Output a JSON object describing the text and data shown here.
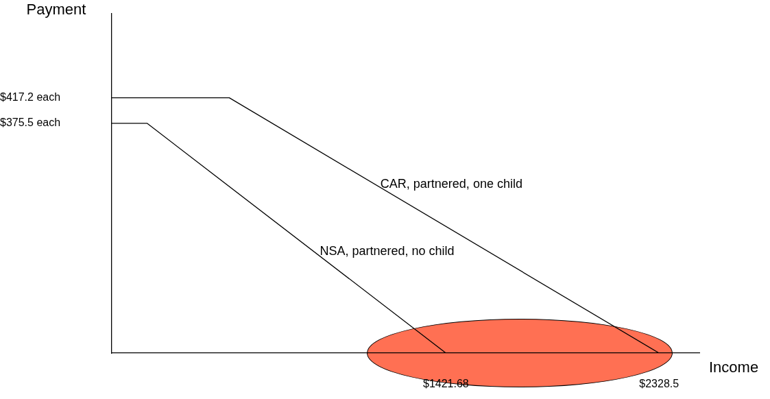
{
  "chart_data": {
    "type": "line",
    "xlabel": "Income",
    "ylabel": "Payment",
    "xlim": [
      0,
      2500
    ],
    "ylim": [
      0,
      555
    ],
    "xticks": [
      {
        "value": 1421.68,
        "label": "$1421.68"
      },
      {
        "value": 2328.5,
        "label": "$2328.5"
      }
    ],
    "yticks": [
      {
        "value": 375.5,
        "label": "$375.5 each"
      },
      {
        "value": 417.2,
        "label": "$417.2 each"
      }
    ],
    "grid": false,
    "legend": false,
    "marker": "none",
    "line_style": "solid",
    "series": [
      {
        "name": "CAR, partnered, one child",
        "color": "#000000",
        "x": [
          0,
          500,
          2328.5
        ],
        "values": [
          417.2,
          417.2,
          0
        ]
      },
      {
        "name": "NSA, partnered, no child",
        "color": "#000000",
        "x": [
          0,
          150,
          1421.68
        ],
        "values": [
          375.5,
          375.5,
          0
        ]
      }
    ]
  }
}
